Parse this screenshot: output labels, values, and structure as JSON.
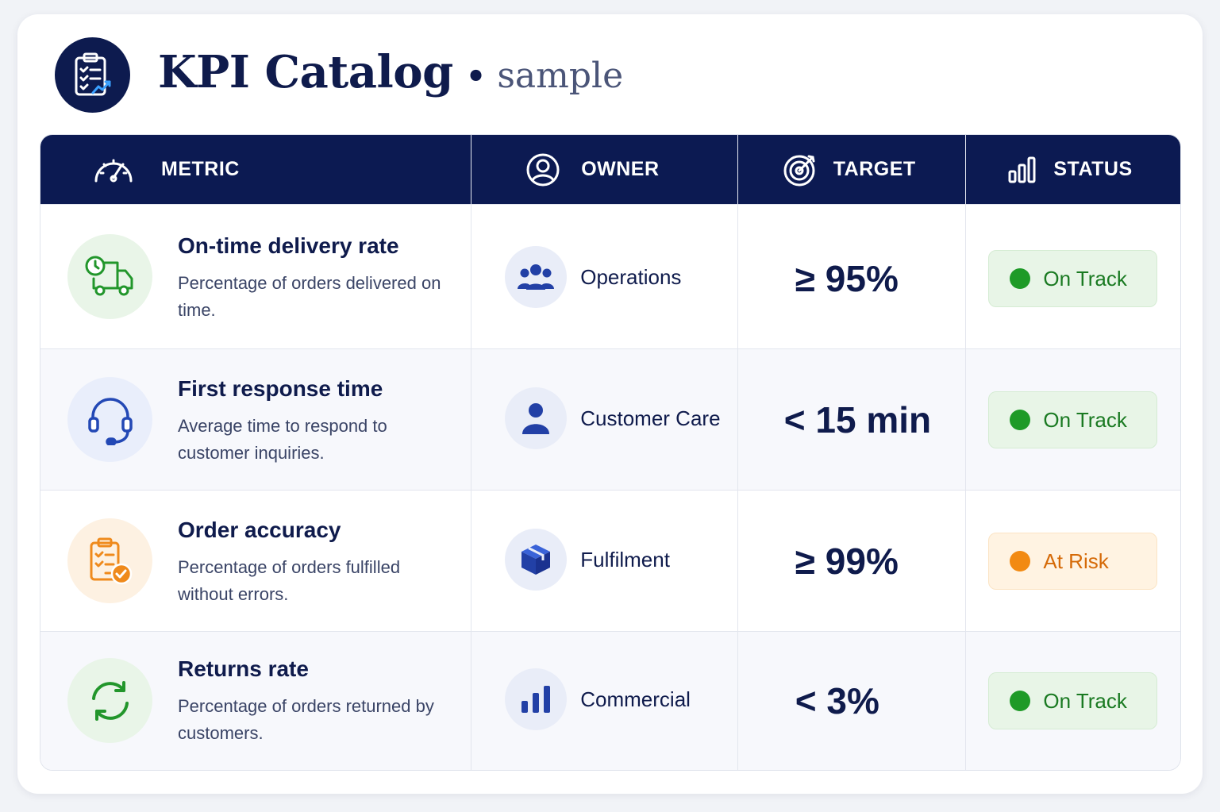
{
  "header": {
    "title": "KPI Catalog",
    "separator": "•",
    "subtitle": "sample",
    "logo_icon": "clipboard-chart-icon"
  },
  "columns": [
    {
      "label": "METRIC",
      "icon": "gauge-icon"
    },
    {
      "label": "OWNER",
      "icon": "user-circle-icon"
    },
    {
      "label": "TARGET",
      "icon": "target-icon"
    },
    {
      "label": "STATUS",
      "icon": "bar-chart-icon"
    }
  ],
  "rows": [
    {
      "metric": "On-time delivery rate",
      "description": "Percentage of orders delivered on time.",
      "metric_icon": "delivery-truck-clock-icon",
      "owner": "Operations",
      "owner_icon": "team-icon",
      "target": "≥ 95%",
      "status": "On Track",
      "status_color": "#1e9a27"
    },
    {
      "metric": "First response time",
      "description": "Average time to respond to customer inquiries.",
      "metric_icon": "headset-icon",
      "owner": "Customer Care",
      "owner_icon": "person-icon",
      "target": "< 15 min",
      "status": "On Track",
      "status_color": "#1e9a27"
    },
    {
      "metric": "Order accuracy",
      "description": "Percentage of orders fulfilled without errors.",
      "metric_icon": "clipboard-check-icon",
      "owner": "Fulfilment",
      "owner_icon": "box-icon",
      "target": "≥ 99%",
      "status": "At Risk",
      "status_color": "#f28a12"
    },
    {
      "metric": "Returns rate",
      "description": "Percentage of orders returned by customers.",
      "metric_icon": "refresh-arrows-icon",
      "owner": "Commercial",
      "owner_icon": "bar-chart-icon",
      "target": "< 3%",
      "status": "On Track",
      "status_color": "#1e9a27"
    }
  ]
}
